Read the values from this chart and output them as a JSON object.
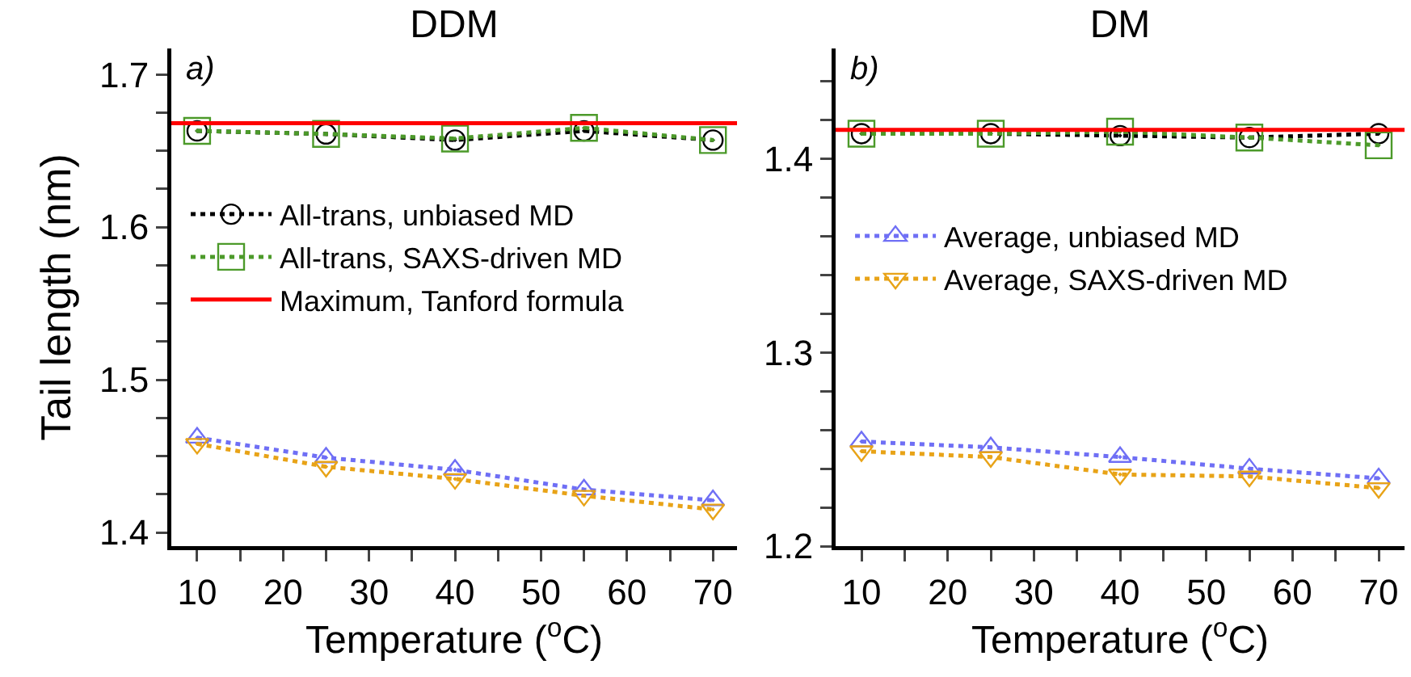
{
  "chart_data": [
    {
      "type": "line",
      "title": "DDM",
      "xlabel": "Temperature ($^{o}$C)",
      "ylabel": "Tail length (nm)",
      "annotations": [
        "a)"
      ],
      "x": [
        10,
        25,
        40,
        55,
        70
      ],
      "xlim": [
        7,
        72.8
      ],
      "xticks": [
        10,
        {
          "value": 15,
          "label": null
        },
        20,
        {
          "value": 25,
          "label": null
        },
        30,
        {
          "value": 35,
          "label": null
        },
        40,
        {
          "value": 45,
          "label": null
        },
        50,
        {
          "value": 55,
          "label": null
        },
        60,
        {
          "value": 65,
          "label": null
        },
        70
      ],
      "ylim": [
        1.391,
        1.717
      ],
      "yticks": [
        1.4,
        {
          "value": 1.425,
          "label": null
        },
        1.5,
        {
          "value": 1.475,
          "label": null
        },
        {
          "value": 1.45,
          "label": null
        },
        {
          "value": 1.525,
          "label": null
        },
        {
          "value": 1.55,
          "label": null
        },
        {
          "value": 1.575,
          "label": null
        },
        1.6,
        {
          "value": 1.625,
          "label": null
        },
        {
          "value": 1.65,
          "label": null
        },
        {
          "value": 1.675,
          "label": null
        },
        1.7
      ],
      "grid": false,
      "legend": "left",
      "line_style": "dotted",
      "series": [
        {
          "name": "All-trans, unbiased MD",
          "color": "#000000",
          "marker": "circle",
          "values": [
            1.663,
            1.661,
            1.657,
            1.663,
            1.657
          ]
        },
        {
          "name": "All-trans, SAXS-driven MD",
          "color": "#4c9a2a",
          "marker": "square",
          "values": [
            1.663,
            1.661,
            1.658,
            1.665,
            1.657
          ]
        },
        {
          "color": "#6f6ff5",
          "marker": "triangle",
          "values": [
            1.462,
            1.449,
            1.441,
            1.428,
            1.421
          ]
        },
        {
          "color": "#e8a317",
          "marker": "triangle-down",
          "values": [
            1.458,
            1.443,
            1.435,
            1.424,
            1.415
          ]
        }
      ],
      "ref_lines": [
        {
          "axis": "y",
          "value": 1.668,
          "label": "Maximum, Tanford formula",
          "color": "#ff0000",
          "line_style": "solid"
        }
      ]
    },
    {
      "type": "line",
      "title": "DM",
      "xlabel": "Temperature ($^{o}$C)",
      "annotations": [
        "b)"
      ],
      "x": [
        10,
        25,
        40,
        55,
        70
      ],
      "xlim": [
        7,
        73
      ],
      "xticks": [
        10,
        {
          "value": 15,
          "label": null
        },
        20,
        {
          "value": 25,
          "label": null
        },
        30,
        {
          "value": 35,
          "label": null
        },
        40,
        {
          "value": 45,
          "label": null
        },
        50,
        {
          "value": 55,
          "label": null
        },
        60,
        {
          "value": 65,
          "label": null
        },
        70
      ],
      "ylim": [
        1.2,
        1.457
      ],
      "yticks": [
        1.2,
        {
          "value": 1.22,
          "label": null
        },
        {
          "value": 1.24,
          "label": null
        },
        {
          "value": 1.26,
          "label": null
        },
        {
          "value": 1.28,
          "label": null
        },
        1.3,
        {
          "value": 1.32,
          "label": null
        },
        {
          "value": 1.34,
          "label": null
        },
        {
          "value": 1.36,
          "label": null
        },
        {
          "value": 1.38,
          "label": null
        },
        1.4,
        {
          "value": 1.42,
          "label": null
        },
        {
          "value": 1.44,
          "label": null
        }
      ],
      "grid": false,
      "legend": "left",
      "line_style": "dotted",
      "series": [
        {
          "color": "#000000",
          "marker": "circle",
          "values": [
            1.413,
            1.413,
            1.412,
            1.411,
            1.413
          ]
        },
        {
          "color": "#4c9a2a",
          "marker": "square",
          "values": [
            1.413,
            1.413,
            1.414,
            1.411,
            1.407
          ]
        },
        {
          "name": "Average, unbiased MD",
          "color": "#6f6ff5",
          "marker": "triangle",
          "values": [
            1.254,
            1.251,
            1.246,
            1.24,
            1.235
          ]
        },
        {
          "name": "Average, SAXS-driven MD",
          "color": "#e8a317",
          "marker": "triangle-down",
          "values": [
            1.249,
            1.246,
            1.237,
            1.236,
            1.23
          ]
        }
      ],
      "ref_lines": [
        {
          "axis": "y",
          "value": 1.415,
          "color": "#ff0000",
          "line_style": "solid"
        }
      ]
    }
  ]
}
